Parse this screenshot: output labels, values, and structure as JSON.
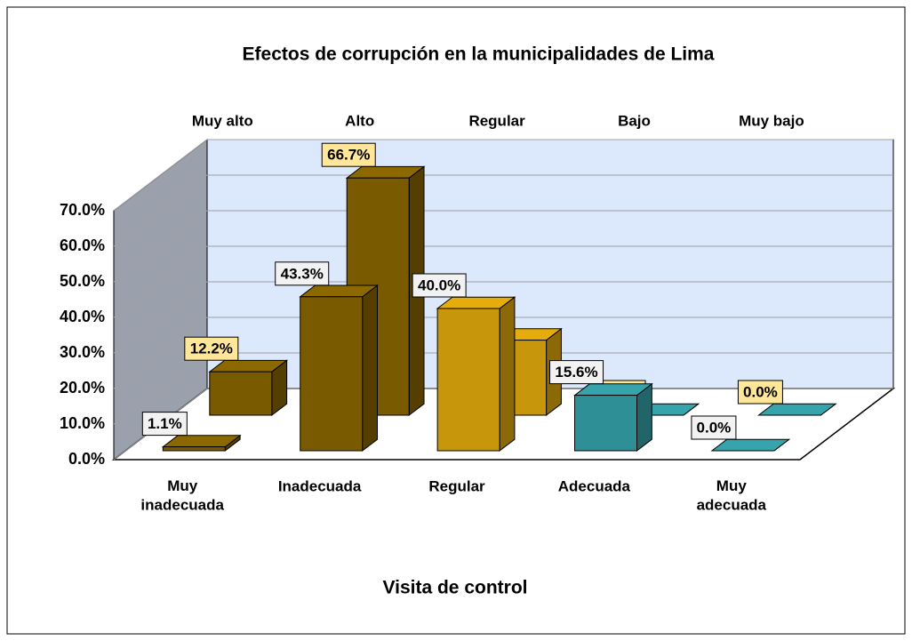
{
  "chart_data": {
    "type": "bar3d",
    "title": "Efectos de corrupción en la municipalidades de Lima",
    "x_label": "Visita  de control",
    "categories": [
      "Muy\ninadecuada",
      "Inadecuada",
      "Regular",
      "Adecuada",
      "Muy\nadecuada"
    ],
    "depth_categories": [
      "Muy alto",
      "Alto",
      "Regular",
      "Bajo",
      "Muy bajo"
    ],
    "colors": [
      "#7a5a00",
      "#7a5a00",
      "#c8960a",
      "#2f8f96",
      "#2f8f96"
    ],
    "series": [
      {
        "values": [
          1.1,
          43.3,
          40.0,
          15.6,
          0.0
        ],
        "value_labels": [
          "1.1%",
          "43.3%",
          "40.0%",
          "15.6%",
          "0.0%"
        ],
        "label_color": "#f2f2f2"
      },
      {
        "values": [
          12.2,
          66.7,
          21.1,
          0.0,
          0.0
        ],
        "value_labels": [
          "12.2%",
          "66.7%",
          "21.1%",
          "0.0%",
          "0.0%"
        ],
        "label_color": "#ffe699"
      }
    ],
    "ylim": [
      0,
      70
    ],
    "yticks": [
      {
        "value": 0,
        "label": "0.0%"
      },
      {
        "value": 10,
        "label": "10.0%"
      },
      {
        "value": 20,
        "label": "20.0%"
      },
      {
        "value": 30,
        "label": "30.0%"
      },
      {
        "value": 40,
        "label": "40.0%"
      },
      {
        "value": 50,
        "label": "50.0%"
      },
      {
        "value": 60,
        "label": "60.0%"
      },
      {
        "value": 70,
        "label": "70.0%"
      }
    ],
    "grid": true,
    "wall_color": "#dce8fc",
    "side_wall_color": "#9aa0ac"
  }
}
